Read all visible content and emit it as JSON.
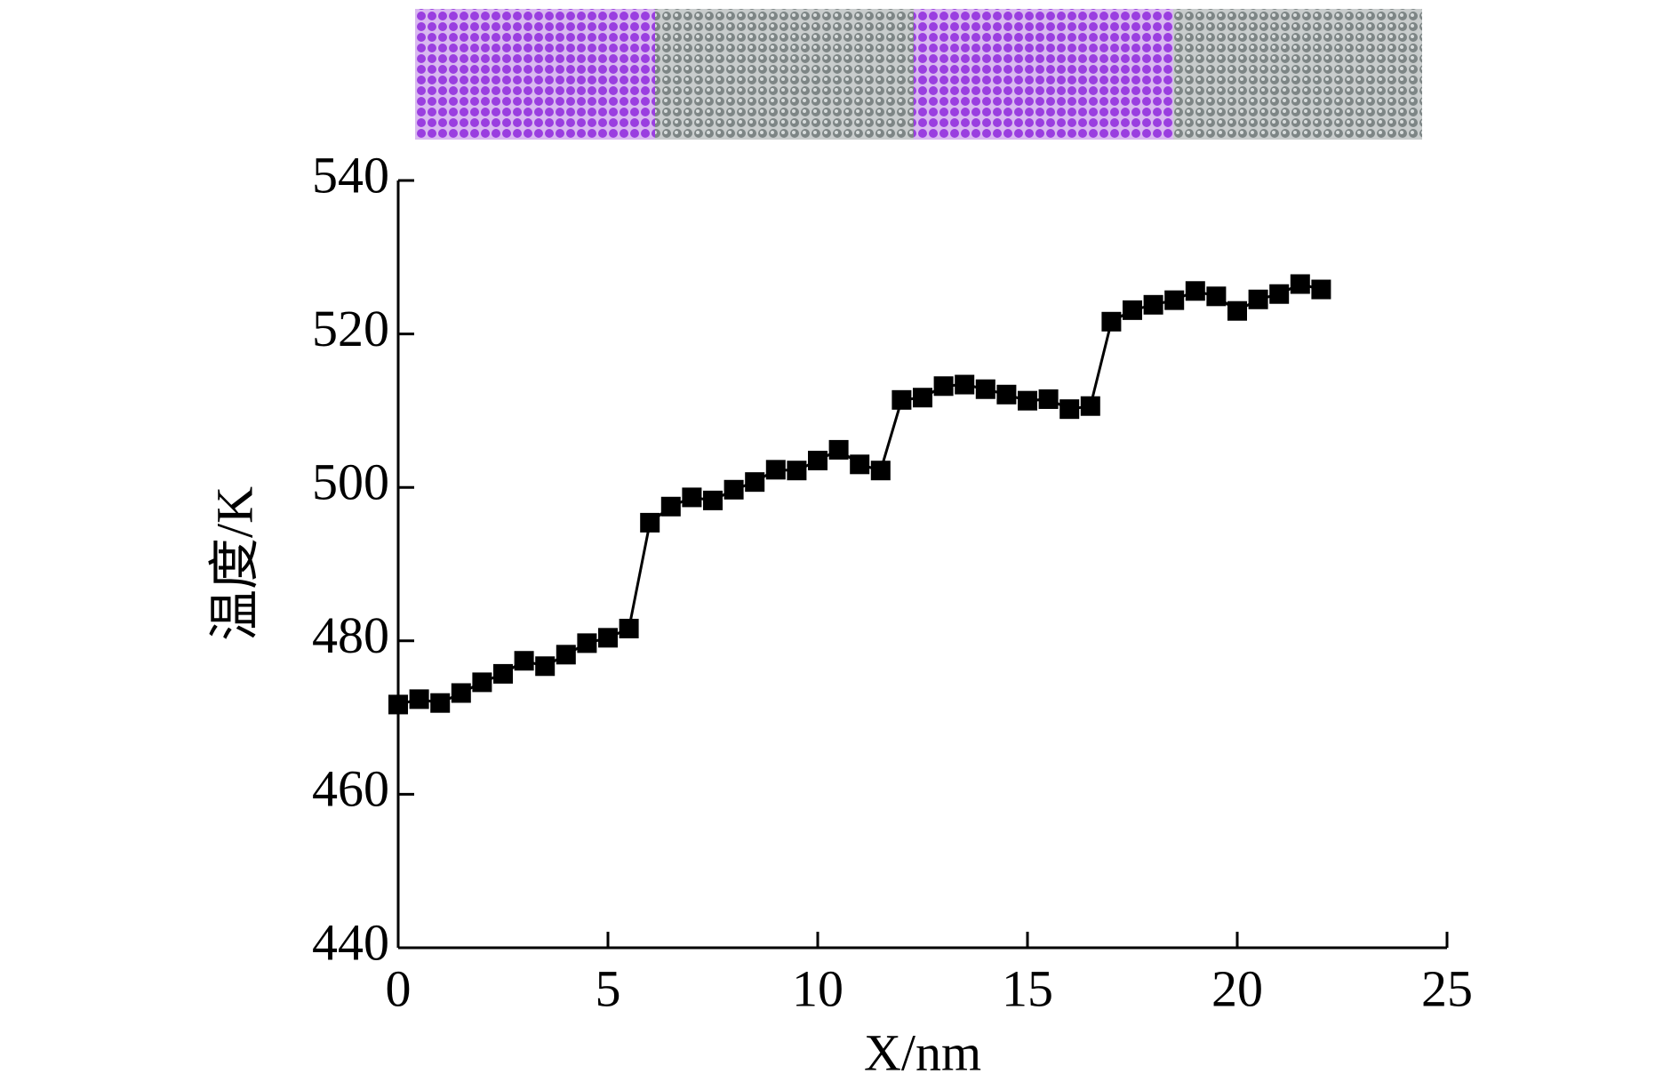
{
  "chart_data": {
    "type": "line",
    "x": [
      0,
      0.5,
      1,
      1.5,
      2,
      2.5,
      3,
      3.5,
      4,
      4.5,
      5,
      5.5,
      6,
      6.5,
      7,
      7.5,
      8,
      8.5,
      9,
      9.5,
      10,
      10.5,
      11,
      11.5,
      12,
      12.5,
      13,
      13.5,
      14,
      14.5,
      15,
      15.5,
      16,
      16.5,
      17,
      17.5,
      18,
      18.5,
      19,
      19.5,
      20,
      20.5,
      21,
      21.5,
      22
    ],
    "values": [
      471.7,
      472.4,
      471.9,
      473.2,
      474.6,
      475.7,
      477.4,
      476.7,
      478.2,
      479.7,
      480.4,
      481.6,
      495.4,
      497.5,
      498.7,
      498.3,
      499.7,
      500.7,
      502.3,
      502.2,
      503.5,
      504.9,
      503.0,
      502.2,
      511.4,
      511.7,
      513.2,
      513.4,
      512.8,
      512.1,
      511.3,
      511.5,
      510.2,
      510.6,
      521.6,
      523.1,
      523.8,
      524.4,
      525.6,
      524.9,
      523.0,
      524.5,
      525.2,
      526.5,
      525.8
    ],
    "color": "#000000",
    "xlabel": "X/nm",
    "ylabel": "温度/K",
    "xlim": [
      0,
      25
    ],
    "xticks": [
      0,
      5,
      10,
      15,
      20,
      25
    ],
    "ylim": [
      440,
      540
    ],
    "yticks": [
      440,
      460,
      480,
      500,
      520,
      540
    ],
    "grid": false
  }
}
